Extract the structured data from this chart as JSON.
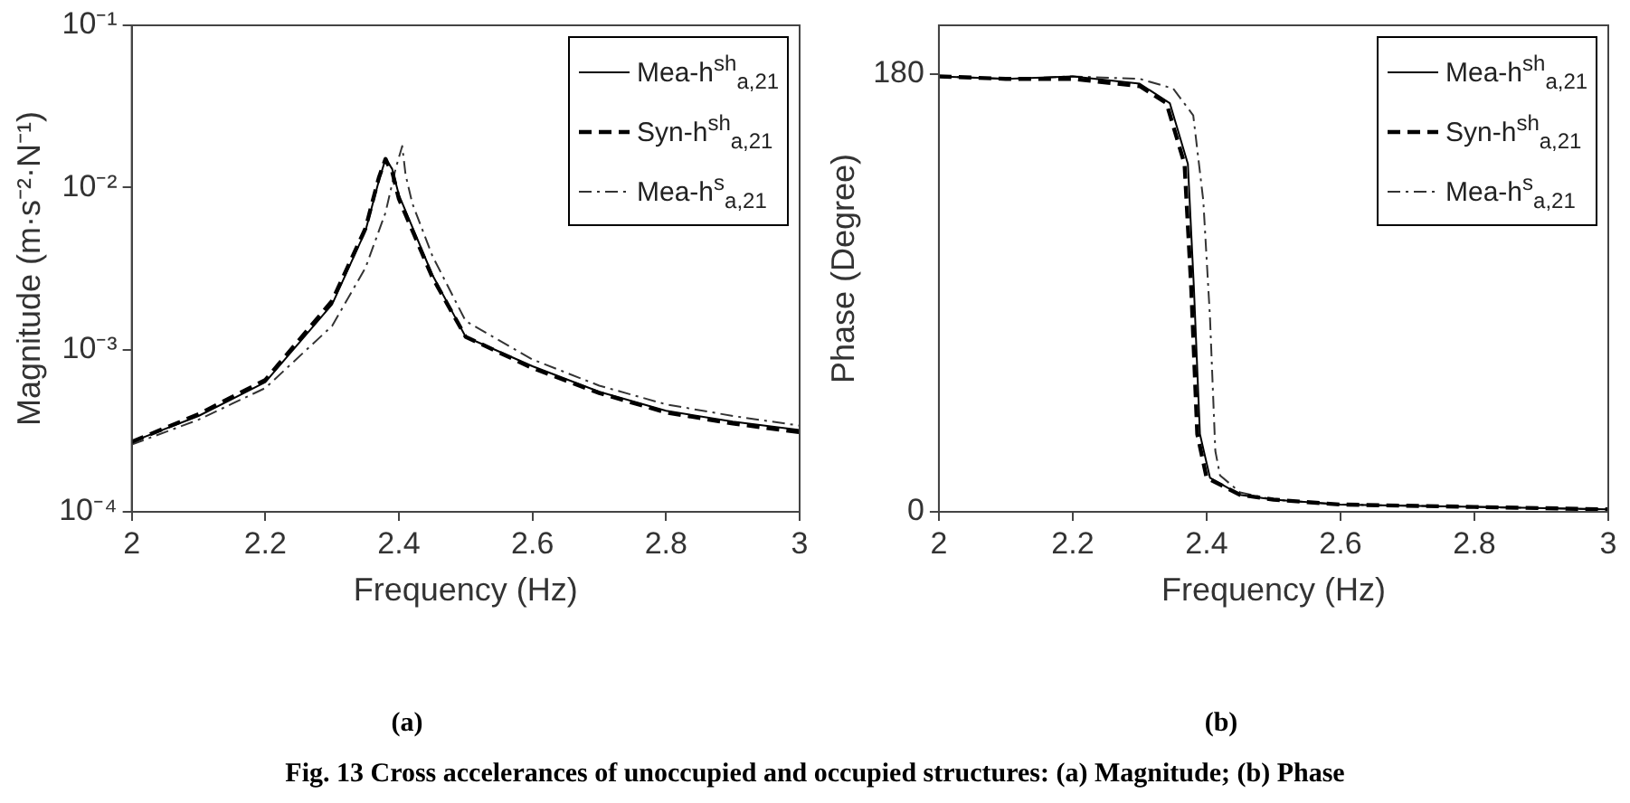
{
  "chart_data": [
    {
      "type": "line",
      "xlabel": "Frequency (Hz)",
      "ylabel": "Magnitude (m·s⁻²·N⁻¹)",
      "log": "y",
      "legend": "top right",
      "xlim": [
        2,
        3
      ],
      "xticks": [
        2,
        2.2,
        2.4,
        2.6,
        2.8,
        3
      ],
      "ylim": [
        0.0001,
        0.1
      ],
      "yticks": [
        {
          "value": 0.0001,
          "label": "10⁻⁴"
        },
        {
          "value": 0.001,
          "label": "10⁻³"
        },
        {
          "value": 0.01,
          "label": "10⁻²"
        },
        {
          "value": 0.1,
          "label": "10⁻¹"
        }
      ],
      "x": [
        2,
        2.1,
        2.2,
        2.3,
        2.35,
        2.37,
        2.38,
        2.385,
        2.39,
        2.4,
        2.45,
        2.5,
        2.6,
        2.7,
        2.8,
        2.9,
        3
      ],
      "series": [
        {
          "name": "Mea-h$^{sh}$$_{a,21}$",
          "color": "#000000",
          "line_style": "solid",
          "values": [
            0.00027,
            0.00039,
            0.00063,
            0.0019,
            0.0054,
            0.011,
            0.015,
            0.014,
            0.013,
            0.009,
            0.0029,
            0.0012,
            0.00079,
            0.00055,
            0.00042,
            0.00036,
            0.00032
          ]
        },
        {
          "name": "Syn-h$^{sh}$$_{a,21}$",
          "color": "#000000",
          "line_style": "dashed",
          "values": [
            0.00027,
            0.0004,
            0.00065,
            0.002,
            0.0056,
            0.0115,
            0.015,
            0.0135,
            0.0125,
            0.0085,
            0.0028,
            0.0012,
            0.00077,
            0.00054,
            0.00041,
            0.00035,
            0.00031
          ]
        },
        {
          "name": "Mea-h$^{s}$$_{a,21}$",
          "color": "#333333",
          "line_style": "dashdot",
          "x": [
            2,
            2.1,
            2.2,
            2.3,
            2.35,
            2.38,
            2.395,
            2.405,
            2.41,
            2.42,
            2.45,
            2.5,
            2.6,
            2.7,
            2.8,
            2.9,
            3
          ],
          "values": [
            0.00026,
            0.00037,
            0.00058,
            0.0014,
            0.0032,
            0.007,
            0.013,
            0.018,
            0.012,
            0.008,
            0.0038,
            0.0015,
            0.00087,
            0.0006,
            0.00046,
            0.00039,
            0.00034
          ]
        }
      ],
      "annotations": [
        "(a)",
        "Fig. 13 Cross accelerances of unoccupied and occupied structures: (a) Magnitude; (b) Phase"
      ]
    },
    {
      "type": "line",
      "xlabel": "Frequency (Hz)",
      "ylabel": "Phase (Degree)",
      "legend": "top right",
      "xlim": [
        2,
        3
      ],
      "xticks": [
        2,
        2.2,
        2.4,
        2.6,
        2.8,
        3
      ],
      "ylim": [
        0,
        200
      ],
      "yticks": [
        0,
        180
      ],
      "series": [
        {
          "name": "Mea-h$^{sh}$$_{a,21}$",
          "color": "#000000",
          "line_style": "solid",
          "x": [
            2,
            2.1,
            2.2,
            2.3,
            2.345,
            2.372,
            2.381,
            2.39,
            2.405,
            2.45,
            2.5,
            2.6,
            2.8,
            3
          ],
          "values": [
            179,
            178,
            179,
            176,
            168,
            143,
            92,
            32,
            14,
            7,
            5,
            3,
            2,
            1
          ]
        },
        {
          "name": "Syn-h$^{sh}$$_{a,21}$",
          "color": "#000000",
          "line_style": "dashed",
          "x": [
            2,
            2.1,
            2.2,
            2.3,
            2.34,
            2.367,
            2.377,
            2.386,
            2.4,
            2.45,
            2.5,
            2.6,
            2.8,
            3
          ],
          "values": [
            179,
            178,
            178,
            175,
            168,
            143,
            92,
            32,
            14,
            7,
            5,
            3,
            2,
            1
          ]
        },
        {
          "name": "Mea-h$^{s}$$_{a,21}$",
          "color": "#333333",
          "line_style": "dashdot",
          "x": [
            2,
            2.1,
            2.2,
            2.3,
            2.35,
            2.38,
            2.395,
            2.405,
            2.413,
            2.42,
            2.45,
            2.5,
            2.6,
            2.8,
            3
          ],
          "values": [
            179,
            178,
            179,
            178,
            174,
            163,
            128,
            80,
            25,
            15,
            8,
            5,
            3,
            2,
            1
          ]
        }
      ],
      "annotations": [
        "(b)"
      ]
    }
  ]
}
